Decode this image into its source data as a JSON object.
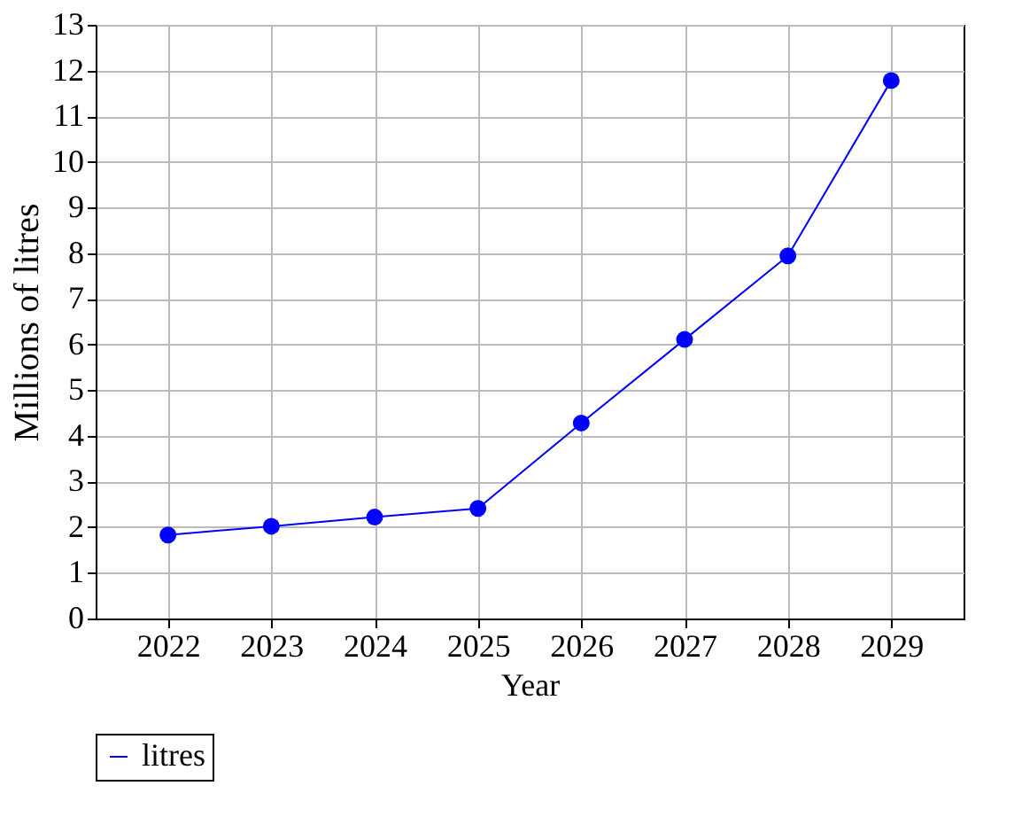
{
  "chart_data": {
    "type": "line",
    "xlabel": "Year",
    "ylabel": "Millions of litres",
    "categories": [
      "2022",
      "2023",
      "2024",
      "2025",
      "2026",
      "2027",
      "2028",
      "2029"
    ],
    "series": [
      {
        "name": "litres",
        "color": "#0000ff",
        "values": [
          1.83,
          2.02,
          2.22,
          2.41,
          4.28,
          6.11,
          7.94,
          11.78
        ]
      }
    ],
    "ylim": [
      0,
      13
    ],
    "yticks": [
      0,
      1,
      2,
      3,
      4,
      5,
      6,
      7,
      8,
      9,
      10,
      11,
      12,
      13
    ],
    "grid": true,
    "legend": "bottom",
    "marker": "circle",
    "line_style": "solid"
  }
}
